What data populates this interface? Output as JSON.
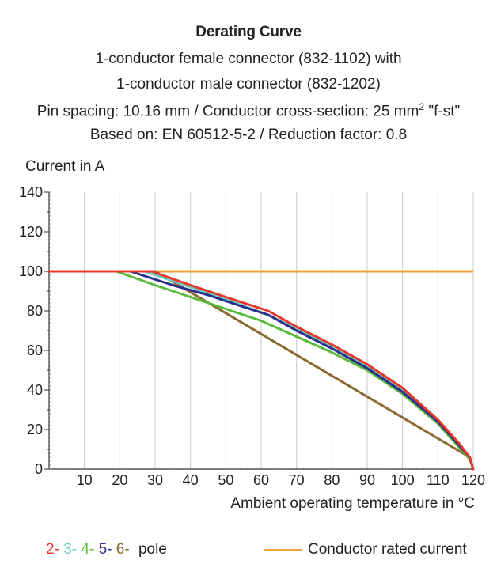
{
  "chart_data": {
    "type": "line",
    "title": "Derating Curve",
    "subtitles": [
      "1-conductor female connector (832-1102) with",
      "1-conductor male connector (832-1202)",
      "Pin spacing: 10.16 mm / Conductor cross-section: 25 mm",
      "\"f-st\"",
      "Based on: EN 60512-5-2 / Reduction factor: 0.8"
    ],
    "superscript": "2",
    "ylabel": "Current in A",
    "xlabel": "Ambient operating temperature in °C",
    "xlim": [
      0,
      120
    ],
    "ylim": [
      0,
      140
    ],
    "xticks": [
      10,
      20,
      30,
      40,
      50,
      60,
      70,
      80,
      90,
      100,
      110,
      120
    ],
    "yticks": [
      0,
      20,
      40,
      60,
      80,
      100,
      120,
      140
    ],
    "grid": "vertical",
    "rated_current": {
      "name": "Conductor rated current",
      "value": 100,
      "color": "#f0a23c"
    },
    "series": [
      {
        "name": "2-",
        "color": "#e8382c",
        "x": [
          0,
          29,
          40,
          50,
          62,
          70,
          80,
          90,
          100,
          110,
          116,
          119,
          120
        ],
        "y": [
          100,
          100,
          93,
          87,
          80,
          72,
          63,
          53,
          41,
          25,
          13,
          6,
          0
        ]
      },
      {
        "name": "3-",
        "color": "#6cc9c4",
        "x": [
          0,
          27,
          40,
          50,
          62,
          70,
          80,
          90,
          100,
          110,
          116,
          119,
          120
        ],
        "y": [
          100,
          100,
          92,
          86,
          78,
          71,
          62,
          52,
          40,
          24,
          12,
          6,
          0
        ]
      },
      {
        "name": "4-",
        "color": "#5aba3a",
        "x": [
          0,
          19,
          30,
          40,
          50,
          60,
          70,
          80,
          90,
          100,
          110,
          116,
          119,
          120
        ],
        "y": [
          100,
          100,
          93,
          87,
          81,
          75,
          67,
          59,
          50,
          38,
          23,
          11,
          5,
          0
        ]
      },
      {
        "name": "5-",
        "color": "#2a2e8c",
        "x": [
          0,
          23,
          35,
          45,
          55,
          62,
          70,
          80,
          90,
          100,
          110,
          116,
          119,
          120
        ],
        "y": [
          100,
          100,
          93,
          88,
          82,
          78,
          70,
          61,
          51,
          39,
          24,
          12,
          6,
          0
        ]
      },
      {
        "name": "6-",
        "color": "#8a6a30",
        "x": [
          0,
          30,
          119,
          120
        ],
        "y": [
          100,
          100,
          6,
          0
        ]
      }
    ],
    "series_order_drawn": [
      "6-",
      "3-",
      "4-",
      "5-",
      "2-"
    ],
    "legend": {
      "suffix": "pole",
      "position": "bottom"
    }
  }
}
